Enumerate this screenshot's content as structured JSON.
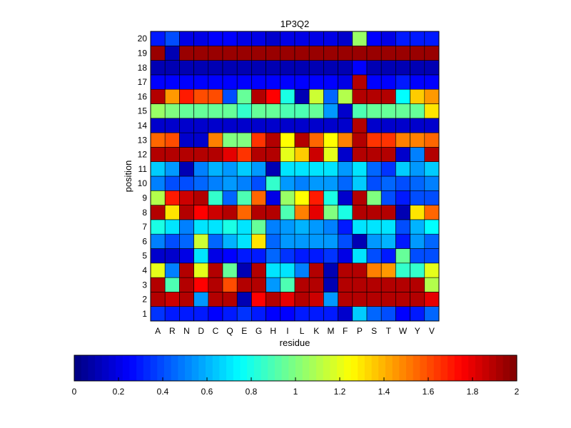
{
  "chart_data": {
    "type": "heatmap",
    "title": "1P3Q2",
    "xlabel": "residue",
    "ylabel": "position",
    "x_categories": [
      "A",
      "R",
      "N",
      "D",
      "C",
      "Q",
      "E",
      "G",
      "H",
      "I",
      "L",
      "K",
      "M",
      "F",
      "P",
      "S",
      "T",
      "W",
      "Y",
      "V"
    ],
    "y_categories": [
      "1",
      "2",
      "3",
      "4",
      "5",
      "6",
      "7",
      "8",
      "9",
      "10",
      "11",
      "12",
      "13",
      "14",
      "15",
      "16",
      "17",
      "18",
      "19",
      "20"
    ],
    "values": [
      [
        0.35,
        0.3,
        0.3,
        0.3,
        0.25,
        0.3,
        0.35,
        0.3,
        0.25,
        0.25,
        0.3,
        0.3,
        0.3,
        0.15,
        0.65,
        0.45,
        0.4,
        0.25,
        0.3,
        0.45
      ],
      [
        1.9,
        1.85,
        1.9,
        0.55,
        1.9,
        1.9,
        0.1,
        1.75,
        1.9,
        1.8,
        1.9,
        1.85,
        0.55,
        1.9,
        1.9,
        1.9,
        1.9,
        1.9,
        1.9,
        1.8
      ],
      [
        1.9,
        0.9,
        1.9,
        1.75,
        1.9,
        1.6,
        1.9,
        1.9,
        0.55,
        0.9,
        1.9,
        1.9,
        0.1,
        1.9,
        1.9,
        1.9,
        1.9,
        1.9,
        1.9,
        1.1
      ],
      [
        1.2,
        0.5,
        1.9,
        1.2,
        1.9,
        0.95,
        0.1,
        1.9,
        0.7,
        0.7,
        0.5,
        1.9,
        0.1,
        1.9,
        1.9,
        1.5,
        1.45,
        0.85,
        0.85,
        1.2
      ],
      [
        0.15,
        0.15,
        0.2,
        0.7,
        0.2,
        0.25,
        0.3,
        0.3,
        0.45,
        0.35,
        0.3,
        0.3,
        0.35,
        0.2,
        0.7,
        0.4,
        0.3,
        0.95,
        0.4,
        0.4
      ],
      [
        0.5,
        0.4,
        0.45,
        1.15,
        0.45,
        0.6,
        0.7,
        1.3,
        0.45,
        0.55,
        0.55,
        0.55,
        0.55,
        0.4,
        0.1,
        0.55,
        0.6,
        0.3,
        0.55,
        0.45
      ],
      [
        0.8,
        0.7,
        0.5,
        0.7,
        0.7,
        0.8,
        0.7,
        0.95,
        0.5,
        0.55,
        0.6,
        0.55,
        0.5,
        0.3,
        0.7,
        0.7,
        0.7,
        0.4,
        0.6,
        0.75
      ],
      [
        1.9,
        1.3,
        1.9,
        1.75,
        1.85,
        1.9,
        1.55,
        1.9,
        1.9,
        0.9,
        1.5,
        1.8,
        1.0,
        0.8,
        1.9,
        1.9,
        1.9,
        0.1,
        1.3,
        1.55
      ],
      [
        1.1,
        1.7,
        1.85,
        1.9,
        0.85,
        0.45,
        0.9,
        1.55,
        0.2,
        1.05,
        1.25,
        1.7,
        0.8,
        0.15,
        1.9,
        1.0,
        0.4,
        0.3,
        0.4,
        0.4
      ],
      [
        0.5,
        0.4,
        0.4,
        0.45,
        0.5,
        0.55,
        0.5,
        0.4,
        0.85,
        0.55,
        0.5,
        0.55,
        0.55,
        0.45,
        0.65,
        0.4,
        0.45,
        0.4,
        0.45,
        0.5
      ],
      [
        0.65,
        0.55,
        0.1,
        0.5,
        0.6,
        0.55,
        0.65,
        0.55,
        0.1,
        0.7,
        0.7,
        0.7,
        0.7,
        0.55,
        0.7,
        0.45,
        0.35,
        0.65,
        0.55,
        0.65
      ],
      [
        1.9,
        1.9,
        1.9,
        1.9,
        1.9,
        1.8,
        1.65,
        1.9,
        1.9,
        1.2,
        1.35,
        1.85,
        1.2,
        0.15,
        1.9,
        1.9,
        1.9,
        0.15,
        0.5,
        1.9
      ],
      [
        1.55,
        1.6,
        0.15,
        0.15,
        1.5,
        1.0,
        1.0,
        1.65,
        1.9,
        1.25,
        1.9,
        1.55,
        1.25,
        1.5,
        1.9,
        1.65,
        1.65,
        1.5,
        1.5,
        1.55
      ],
      [
        0.15,
        0.15,
        0.15,
        0.15,
        0.15,
        0.15,
        0.15,
        0.15,
        0.15,
        0.15,
        0.15,
        0.15,
        0.15,
        0.15,
        1.9,
        0.15,
        0.15,
        0.15,
        0.15,
        0.15
      ],
      [
        1.05,
        1.0,
        0.95,
        0.95,
        0.95,
        0.95,
        0.85,
        0.95,
        0.95,
        0.9,
        0.9,
        0.95,
        0.55,
        0.15,
        0.9,
        0.95,
        0.95,
        0.95,
        0.95,
        1.3
      ],
      [
        1.9,
        1.45,
        1.7,
        1.6,
        1.6,
        0.4,
        0.95,
        1.9,
        1.75,
        0.8,
        0.1,
        1.15,
        0.45,
        1.1,
        1.9,
        1.9,
        1.9,
        0.75,
        1.35,
        1.45
      ],
      [
        0.25,
        0.25,
        0.25,
        0.25,
        0.25,
        0.25,
        0.25,
        0.25,
        0.25,
        0.25,
        0.25,
        0.25,
        0.25,
        0.2,
        1.9,
        0.25,
        0.25,
        0.3,
        0.25,
        0.25
      ],
      [
        0.1,
        0.1,
        0.1,
        0.1,
        0.1,
        0.1,
        0.1,
        0.1,
        0.1,
        0.1,
        0.1,
        0.1,
        0.1,
        0.1,
        0.25,
        0.1,
        0.1,
        0.1,
        0.1,
        0.1
      ],
      [
        1.95,
        0.1,
        1.95,
        1.95,
        1.95,
        1.95,
        1.95,
        1.95,
        1.95,
        1.95,
        1.95,
        1.95,
        1.95,
        1.95,
        1.95,
        1.95,
        1.95,
        1.95,
        1.95,
        1.95
      ],
      [
        0.3,
        0.4,
        0.2,
        0.2,
        0.25,
        0.25,
        0.2,
        0.2,
        0.15,
        0.2,
        0.2,
        0.2,
        0.2,
        0.15,
        1.05,
        0.25,
        0.2,
        0.3,
        0.3,
        0.3
      ]
    ],
    "colorbar": {
      "colormap": "jet",
      "clim": [
        0,
        2
      ],
      "ticks": [
        0,
        0.2,
        0.4,
        0.6,
        0.8,
        1,
        1.2,
        1.4,
        1.6,
        1.8,
        2
      ],
      "tick_labels": [
        "0",
        "0.2",
        "0.4",
        "0.6",
        "0.8",
        "1",
        "1.2",
        "1.4",
        "1.6",
        "1.8",
        "2"
      ],
      "orientation": "horizontal",
      "placement": "bottom"
    },
    "grid": true
  }
}
